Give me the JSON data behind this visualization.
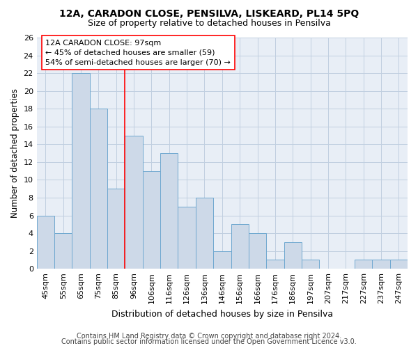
{
  "title1": "12A, CARADON CLOSE, PENSILVA, LISKEARD, PL14 5PQ",
  "title2": "Size of property relative to detached houses in Pensilva",
  "xlabel": "Distribution of detached houses by size in Pensilva",
  "ylabel": "Number of detached properties",
  "categories": [
    "45sqm",
    "55sqm",
    "65sqm",
    "75sqm",
    "85sqm",
    "96sqm",
    "106sqm",
    "116sqm",
    "126sqm",
    "136sqm",
    "146sqm",
    "156sqm",
    "166sqm",
    "176sqm",
    "186sqm",
    "197sqm",
    "207sqm",
    "217sqm",
    "227sqm",
    "237sqm",
    "247sqm"
  ],
  "values": [
    6,
    4,
    22,
    18,
    9,
    15,
    11,
    13,
    7,
    8,
    2,
    5,
    4,
    1,
    3,
    1,
    0,
    0,
    1,
    1,
    1
  ],
  "bar_color": "#cdd9e8",
  "bar_edge_color": "#6fa8d0",
  "property_line_x": 4.5,
  "annotation_text": "12A CARADON CLOSE: 97sqm\n← 45% of detached houses are smaller (59)\n54% of semi-detached houses are larger (70) →",
  "ylim": [
    0,
    26
  ],
  "yticks": [
    0,
    2,
    4,
    6,
    8,
    10,
    12,
    14,
    16,
    18,
    20,
    22,
    24,
    26
  ],
  "bg_color": "#e8eef6",
  "grid_color": "#c0cfe0",
  "footer1": "Contains HM Land Registry data © Crown copyright and database right 2024.",
  "footer2": "Contains public sector information licensed under the Open Government Licence v3.0.",
  "title1_fontsize": 10,
  "title2_fontsize": 9,
  "xlabel_fontsize": 9,
  "ylabel_fontsize": 8.5,
  "tick_fontsize": 8,
  "annotation_fontsize": 8,
  "footer_fontsize": 7
}
